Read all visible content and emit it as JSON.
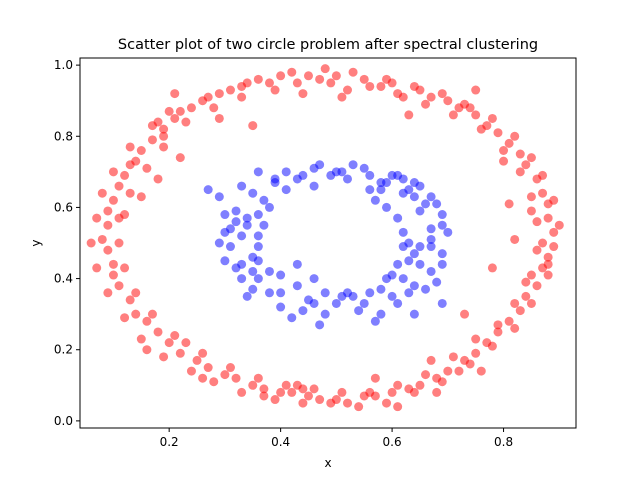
{
  "chart_data": {
    "type": "scatter",
    "title": "Scatter plot of two circle problem after spectral clustering",
    "xlabel": "x",
    "ylabel": "y",
    "xlim": [
      0.04,
      0.93
    ],
    "ylim": [
      -0.02,
      1.02
    ],
    "xticks": [
      "0.2",
      "0.4",
      "0.6",
      "0.8"
    ],
    "yticks": [
      "0.0",
      "0.2",
      "0.4",
      "0.6",
      "0.8",
      "1.0"
    ],
    "grid": false,
    "legend": "none",
    "series": [
      {
        "color": "#ff0000",
        "opacity": 0.5,
        "points": [
          [
            0.5,
            0.97
          ],
          [
            0.55,
            0.96
          ],
          [
            0.6,
            0.95
          ],
          [
            0.65,
            0.93
          ],
          [
            0.7,
            0.9
          ],
          [
            0.75,
            0.86
          ],
          [
            0.79,
            0.81
          ],
          [
            0.83,
            0.75
          ],
          [
            0.86,
            0.68
          ],
          [
            0.88,
            0.61
          ],
          [
            0.89,
            0.53
          ],
          [
            0.88,
            0.46
          ],
          [
            0.86,
            0.38
          ],
          [
            0.83,
            0.31
          ],
          [
            0.79,
            0.25
          ],
          [
            0.75,
            0.19
          ],
          [
            0.7,
            0.14
          ],
          [
            0.65,
            0.1
          ],
          [
            0.6,
            0.08
          ],
          [
            0.55,
            0.07
          ],
          [
            0.5,
            0.06
          ],
          [
            0.45,
            0.07
          ],
          [
            0.4,
            0.08
          ],
          [
            0.35,
            0.1
          ],
          [
            0.3,
            0.13
          ],
          [
            0.25,
            0.17
          ],
          [
            0.2,
            0.22
          ],
          [
            0.16,
            0.28
          ],
          [
            0.13,
            0.34
          ],
          [
            0.1,
            0.41
          ],
          [
            0.09,
            0.48
          ],
          [
            0.09,
            0.55
          ],
          [
            0.1,
            0.62
          ],
          [
            0.12,
            0.69
          ],
          [
            0.15,
            0.76
          ],
          [
            0.19,
            0.82
          ],
          [
            0.24,
            0.88
          ],
          [
            0.29,
            0.92
          ],
          [
            0.34,
            0.95
          ],
          [
            0.4,
            0.97
          ],
          [
            0.45,
            0.97
          ],
          [
            0.47,
            0.96
          ],
          [
            0.52,
            0.93
          ],
          [
            0.58,
            0.94
          ],
          [
            0.62,
            0.91
          ],
          [
            0.67,
            0.91
          ],
          [
            0.72,
            0.88
          ],
          [
            0.77,
            0.83
          ],
          [
            0.81,
            0.78
          ],
          [
            0.84,
            0.72
          ],
          [
            0.87,
            0.64
          ],
          [
            0.88,
            0.57
          ],
          [
            0.87,
            0.5
          ],
          [
            0.87,
            0.43
          ],
          [
            0.84,
            0.35
          ],
          [
            0.81,
            0.28
          ],
          [
            0.77,
            0.22
          ],
          [
            0.73,
            0.17
          ],
          [
            0.68,
            0.12
          ],
          [
            0.63,
            0.09
          ],
          [
            0.57,
            0.07
          ],
          [
            0.52,
            0.05
          ],
          [
            0.47,
            0.06
          ],
          [
            0.42,
            0.08
          ],
          [
            0.37,
            0.09
          ],
          [
            0.32,
            0.12
          ],
          [
            0.27,
            0.15
          ],
          [
            0.22,
            0.19
          ],
          [
            0.18,
            0.25
          ],
          [
            0.14,
            0.3
          ],
          [
            0.11,
            0.38
          ],
          [
            0.1,
            0.44
          ],
          [
            0.08,
            0.51
          ],
          [
            0.09,
            0.59
          ],
          [
            0.11,
            0.66
          ],
          [
            0.13,
            0.72
          ],
          [
            0.17,
            0.79
          ],
          [
            0.21,
            0.85
          ],
          [
            0.26,
            0.9
          ],
          [
            0.31,
            0.93
          ],
          [
            0.36,
            0.96
          ],
          [
            0.42,
            0.98
          ],
          [
            0.48,
            0.99
          ],
          [
            0.53,
            0.98
          ],
          [
            0.59,
            0.96
          ],
          [
            0.64,
            0.94
          ],
          [
            0.69,
            0.92
          ],
          [
            0.74,
            0.88
          ],
          [
            0.78,
            0.85
          ],
          [
            0.82,
            0.8
          ],
          [
            0.85,
            0.74
          ],
          [
            0.87,
            0.69
          ],
          [
            0.89,
            0.62
          ],
          [
            0.9,
            0.55
          ],
          [
            0.89,
            0.49
          ],
          [
            0.88,
            0.41
          ],
          [
            0.85,
            0.33
          ],
          [
            0.82,
            0.26
          ],
          [
            0.78,
            0.21
          ],
          [
            0.74,
            0.16
          ],
          [
            0.69,
            0.11
          ],
          [
            0.64,
            0.08
          ],
          [
            0.59,
            0.05
          ],
          [
            0.54,
            0.04
          ],
          [
            0.49,
            0.05
          ],
          [
            0.44,
            0.05
          ],
          [
            0.39,
            0.06
          ],
          [
            0.33,
            0.08
          ],
          [
            0.28,
            0.11
          ],
          [
            0.24,
            0.14
          ],
          [
            0.19,
            0.18
          ],
          [
            0.15,
            0.23
          ],
          [
            0.12,
            0.29
          ],
          [
            0.09,
            0.36
          ],
          [
            0.07,
            0.43
          ],
          [
            0.06,
            0.5
          ],
          [
            0.07,
            0.57
          ],
          [
            0.08,
            0.64
          ],
          [
            0.1,
            0.7
          ],
          [
            0.13,
            0.77
          ],
          [
            0.17,
            0.83
          ],
          [
            0.22,
            0.87
          ],
          [
            0.27,
            0.91
          ],
          [
            0.33,
            0.94
          ],
          [
            0.38,
            0.95
          ],
          [
            0.43,
            0.95
          ],
          [
            0.49,
            0.95
          ],
          [
            0.56,
            0.94
          ],
          [
            0.61,
            0.92
          ],
          [
            0.66,
            0.89
          ],
          [
            0.71,
            0.86
          ],
          [
            0.76,
            0.82
          ],
          [
            0.8,
            0.76
          ],
          [
            0.83,
            0.7
          ],
          [
            0.85,
            0.63
          ],
          [
            0.86,
            0.56
          ],
          [
            0.86,
            0.48
          ],
          [
            0.85,
            0.41
          ],
          [
            0.82,
            0.33
          ],
          [
            0.79,
            0.27
          ],
          [
            0.75,
            0.23
          ],
          [
            0.71,
            0.18
          ],
          [
            0.66,
            0.13
          ],
          [
            0.61,
            0.1
          ],
          [
            0.56,
            0.08
          ],
          [
            0.51,
            0.08
          ],
          [
            0.46,
            0.09
          ],
          [
            0.41,
            0.1
          ],
          [
            0.36,
            0.12
          ],
          [
            0.31,
            0.15
          ],
          [
            0.26,
            0.19
          ],
          [
            0.21,
            0.24
          ],
          [
            0.17,
            0.3
          ],
          [
            0.14,
            0.36
          ],
          [
            0.12,
            0.43
          ],
          [
            0.11,
            0.5
          ],
          [
            0.11,
            0.57
          ],
          [
            0.13,
            0.64
          ],
          [
            0.16,
            0.71
          ],
          [
            0.19,
            0.77
          ],
          [
            0.23,
            0.84
          ],
          [
            0.28,
            0.88
          ],
          [
            0.33,
            0.91
          ],
          [
            0.39,
            0.93
          ],
          [
            0.44,
            0.92
          ],
          [
            0.2,
            0.87
          ],
          [
            0.18,
            0.68
          ],
          [
            0.22,
            0.74
          ],
          [
            0.8,
            0.73
          ],
          [
            0.84,
            0.39
          ],
          [
            0.81,
            0.61
          ],
          [
            0.78,
            0.43
          ],
          [
            0.23,
            0.22
          ],
          [
            0.16,
            0.2
          ],
          [
            0.26,
            0.12
          ],
          [
            0.57,
            0.12
          ],
          [
            0.43,
            0.1
          ],
          [
            0.67,
            0.17
          ],
          [
            0.73,
            0.3
          ],
          [
            0.21,
            0.92
          ],
          [
            0.19,
            0.8
          ],
          [
            0.15,
            0.63
          ],
          [
            0.75,
            0.93
          ],
          [
            0.63,
            0.86
          ],
          [
            0.51,
            0.91
          ],
          [
            0.35,
            0.83
          ],
          [
            0.29,
            0.85
          ],
          [
            0.18,
            0.84
          ],
          [
            0.14,
            0.73
          ],
          [
            0.12,
            0.58
          ],
          [
            0.73,
            0.89
          ],
          [
            0.85,
            0.59
          ],
          [
            0.88,
            0.44
          ],
          [
            0.72,
            0.14
          ],
          [
            0.61,
            0.04
          ],
          [
            0.37,
            0.07
          ],
          [
            0.44,
            0.09
          ],
          [
            0.68,
            0.08
          ],
          [
            0.76,
            0.14
          ],
          [
            0.82,
            0.51
          ]
        ]
      },
      {
        "color": "#0000ff",
        "opacity": 0.5,
        "points": [
          [
            0.5,
            0.7
          ],
          [
            0.55,
            0.71
          ],
          [
            0.6,
            0.69
          ],
          [
            0.64,
            0.67
          ],
          [
            0.67,
            0.63
          ],
          [
            0.69,
            0.58
          ],
          [
            0.7,
            0.53
          ],
          [
            0.69,
            0.47
          ],
          [
            0.67,
            0.42
          ],
          [
            0.64,
            0.38
          ],
          [
            0.6,
            0.35
          ],
          [
            0.55,
            0.33
          ],
          [
            0.5,
            0.33
          ],
          [
            0.45,
            0.34
          ],
          [
            0.4,
            0.36
          ],
          [
            0.36,
            0.4
          ],
          [
            0.33,
            0.44
          ],
          [
            0.31,
            0.49
          ],
          [
            0.31,
            0.54
          ],
          [
            0.32,
            0.59
          ],
          [
            0.35,
            0.64
          ],
          [
            0.39,
            0.67
          ],
          [
            0.44,
            0.69
          ],
          [
            0.47,
            0.72
          ],
          [
            0.52,
            0.68
          ],
          [
            0.58,
            0.67
          ],
          [
            0.62,
            0.64
          ],
          [
            0.65,
            0.59
          ],
          [
            0.67,
            0.54
          ],
          [
            0.67,
            0.49
          ],
          [
            0.65,
            0.44
          ],
          [
            0.62,
            0.4
          ],
          [
            0.58,
            0.37
          ],
          [
            0.53,
            0.35
          ],
          [
            0.48,
            0.36
          ],
          [
            0.43,
            0.38
          ],
          [
            0.38,
            0.42
          ],
          [
            0.35,
            0.46
          ],
          [
            0.33,
            0.52
          ],
          [
            0.34,
            0.57
          ],
          [
            0.37,
            0.62
          ],
          [
            0.41,
            0.65
          ],
          [
            0.46,
            0.66
          ],
          [
            0.27,
            0.65
          ],
          [
            0.29,
            0.63
          ],
          [
            0.3,
            0.58
          ],
          [
            0.32,
            0.56
          ],
          [
            0.33,
            0.66
          ],
          [
            0.36,
            0.7
          ],
          [
            0.39,
            0.68
          ],
          [
            0.41,
            0.7
          ],
          [
            0.43,
            0.68
          ],
          [
            0.46,
            0.71
          ],
          [
            0.49,
            0.69
          ],
          [
            0.51,
            0.7
          ],
          [
            0.53,
            0.72
          ],
          [
            0.56,
            0.69
          ],
          [
            0.59,
            0.67
          ],
          [
            0.61,
            0.69
          ],
          [
            0.63,
            0.65
          ],
          [
            0.65,
            0.66
          ],
          [
            0.66,
            0.61
          ],
          [
            0.68,
            0.61
          ],
          [
            0.69,
            0.55
          ],
          [
            0.67,
            0.51
          ],
          [
            0.69,
            0.44
          ],
          [
            0.68,
            0.39
          ],
          [
            0.66,
            0.37
          ],
          [
            0.63,
            0.36
          ],
          [
            0.61,
            0.33
          ],
          [
            0.58,
            0.3
          ],
          [
            0.54,
            0.31
          ],
          [
            0.51,
            0.35
          ],
          [
            0.48,
            0.3
          ],
          [
            0.46,
            0.33
          ],
          [
            0.44,
            0.31
          ],
          [
            0.42,
            0.29
          ],
          [
            0.4,
            0.32
          ],
          [
            0.38,
            0.36
          ],
          [
            0.35,
            0.37
          ],
          [
            0.33,
            0.4
          ],
          [
            0.32,
            0.43
          ],
          [
            0.3,
            0.45
          ],
          [
            0.29,
            0.5
          ],
          [
            0.3,
            0.53
          ],
          [
            0.34,
            0.55
          ],
          [
            0.36,
            0.52
          ],
          [
            0.36,
            0.49
          ],
          [
            0.36,
            0.45
          ],
          [
            0.35,
            0.42
          ],
          [
            0.37,
            0.55
          ],
          [
            0.38,
            0.6
          ],
          [
            0.36,
            0.58
          ],
          [
            0.6,
            0.41
          ],
          [
            0.59,
            0.4
          ],
          [
            0.61,
            0.44
          ],
          [
            0.63,
            0.45
          ],
          [
            0.62,
            0.49
          ],
          [
            0.63,
            0.5
          ],
          [
            0.62,
            0.53
          ],
          [
            0.61,
            0.57
          ],
          [
            0.59,
            0.6
          ],
          [
            0.57,
            0.62
          ],
          [
            0.56,
            0.65
          ],
          [
            0.43,
            0.44
          ],
          [
            0.46,
            0.4
          ],
          [
            0.52,
            0.36
          ],
          [
            0.56,
            0.36
          ],
          [
            0.62,
            0.68
          ],
          [
            0.64,
            0.63
          ],
          [
            0.65,
            0.49
          ],
          [
            0.64,
            0.47
          ],
          [
            0.47,
            0.27
          ],
          [
            0.57,
            0.28
          ],
          [
            0.64,
            0.3
          ],
          [
            0.69,
            0.33
          ],
          [
            0.4,
            0.41
          ],
          [
            0.34,
            0.35
          ],
          [
            0.58,
            0.65
          ]
        ]
      }
    ]
  }
}
